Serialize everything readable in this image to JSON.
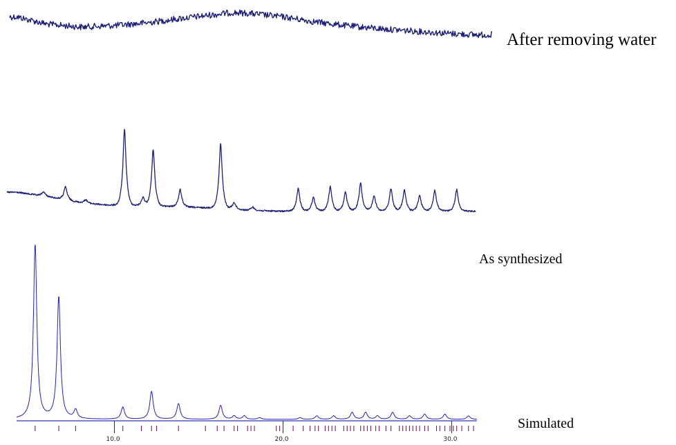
{
  "chart_data": [
    {
      "type": "line",
      "name": "after-removing-water",
      "trace_label": "After removing water",
      "color": "#1a1f7a",
      "xlim": [
        4.2,
        31.5
      ],
      "description_of_shape": "amorphous broad hump, noisy",
      "x": [
        4.2,
        6,
        8,
        10,
        12,
        14,
        16,
        17,
        18,
        20,
        22,
        24,
        26,
        28,
        30,
        31.5
      ],
      "y": [
        0.8,
        0.55,
        0.45,
        0.5,
        0.6,
        0.75,
        0.88,
        0.95,
        0.92,
        0.8,
        0.62,
        0.48,
        0.38,
        0.3,
        0.22,
        0.18
      ]
    },
    {
      "type": "line",
      "name": "as-synthesized",
      "trace_label": "As synthesized",
      "color": "#1a1f7a",
      "xlim": [
        4.2,
        31.5
      ],
      "baseline": [
        [
          4.2,
          0.22
        ],
        [
          6,
          0.17
        ],
        [
          8,
          0.1
        ],
        [
          10,
          0.06
        ],
        [
          12,
          0.05
        ],
        [
          14,
          0.05
        ],
        [
          16,
          0.03
        ],
        [
          18,
          0.01
        ],
        [
          20,
          0.0
        ],
        [
          24,
          0.0
        ],
        [
          31.5,
          0.0
        ]
      ],
      "peaks": [
        {
          "x": 5.8,
          "h": 0.05
        },
        {
          "x": 7.1,
          "h": 0.15
        },
        {
          "x": 8.3,
          "h": 0.04
        },
        {
          "x": 10.6,
          "h": 0.88
        },
        {
          "x": 11.7,
          "h": 0.1
        },
        {
          "x": 12.3,
          "h": 0.66
        },
        {
          "x": 13.9,
          "h": 0.2
        },
        {
          "x": 16.3,
          "h": 0.75
        },
        {
          "x": 17.1,
          "h": 0.08
        },
        {
          "x": 18.2,
          "h": 0.04
        },
        {
          "x": 20.9,
          "h": 0.26
        },
        {
          "x": 21.8,
          "h": 0.16
        },
        {
          "x": 22.8,
          "h": 0.28
        },
        {
          "x": 23.7,
          "h": 0.22
        },
        {
          "x": 24.6,
          "h": 0.32
        },
        {
          "x": 25.4,
          "h": 0.18
        },
        {
          "x": 26.4,
          "h": 0.26
        },
        {
          "x": 27.2,
          "h": 0.24
        },
        {
          "x": 28.1,
          "h": 0.18
        },
        {
          "x": 29.0,
          "h": 0.24
        },
        {
          "x": 30.3,
          "h": 0.25
        }
      ]
    },
    {
      "type": "line",
      "name": "simulated",
      "trace_label": "Simulated",
      "color": "#2020c0",
      "xlim": [
        4.2,
        31.5
      ],
      "xticks": [
        10.0,
        20.0,
        30.0
      ],
      "xtick_labels": [
        "10.0",
        "20.0",
        "30.0"
      ],
      "peaks": [
        {
          "x": 5.3,
          "h": 1.0
        },
        {
          "x": 6.7,
          "h": 0.7
        },
        {
          "x": 7.7,
          "h": 0.05
        },
        {
          "x": 10.5,
          "h": 0.07
        },
        {
          "x": 12.2,
          "h": 0.16
        },
        {
          "x": 13.8,
          "h": 0.09
        },
        {
          "x": 16.3,
          "h": 0.08
        },
        {
          "x": 17.1,
          "h": 0.02
        },
        {
          "x": 17.7,
          "h": 0.02
        },
        {
          "x": 18.6,
          "h": 0.01
        },
        {
          "x": 21.0,
          "h": 0.01
        },
        {
          "x": 22.0,
          "h": 0.02
        },
        {
          "x": 23.0,
          "h": 0.02
        },
        {
          "x": 24.1,
          "h": 0.04
        },
        {
          "x": 24.9,
          "h": 0.04
        },
        {
          "x": 25.6,
          "h": 0.02
        },
        {
          "x": 26.5,
          "h": 0.04
        },
        {
          "x": 27.5,
          "h": 0.02
        },
        {
          "x": 28.4,
          "h": 0.03
        },
        {
          "x": 29.6,
          "h": 0.03
        },
        {
          "x": 31.0,
          "h": 0.02
        }
      ],
      "reflection_markers": {
        "color": "#7a1e5a",
        "x": [
          5.3,
          6.7,
          7.7,
          10.5,
          11.6,
          12.2,
          12.5,
          13.8,
          15.4,
          16.1,
          16.5,
          17.1,
          17.3,
          17.9,
          18.1,
          18.3,
          19.6,
          19.8,
          20.6,
          21.2,
          21.6,
          21.9,
          22.1,
          22.5,
          22.7,
          22.9,
          23.1,
          23.6,
          23.8,
          24.0,
          24.2,
          24.6,
          24.8,
          25.0,
          25.2,
          25.5,
          25.7,
          26.1,
          26.4,
          26.9,
          27.1,
          27.3,
          27.5,
          27.7,
          27.9,
          28.1,
          28.4,
          28.6,
          29.1,
          29.3,
          29.6,
          29.9,
          30.1,
          30.3,
          30.6,
          31.0,
          31.3
        ]
      }
    }
  ]
}
